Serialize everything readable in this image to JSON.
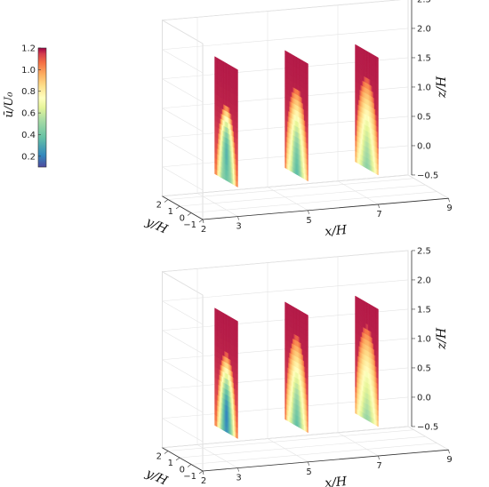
{
  "chart_data": [
    {
      "type": "heatmap",
      "title": "",
      "xlabel": "x/H",
      "ylabel": "y/H",
      "zlabel": "z/H",
      "x_ticks": [
        2,
        3,
        5,
        7,
        9
      ],
      "y_ticks": [
        -1,
        0,
        1,
        2
      ],
      "z_ticks": [
        -0.5,
        0.0,
        0.5,
        1.0,
        1.5,
        2.0,
        2.5
      ],
      "xlim": [
        2,
        9
      ],
      "ylim": [
        -1,
        2.5
      ],
      "zlim": [
        -0.5,
        2.5
      ],
      "grid": true,
      "planes_x": [
        3,
        5,
        7
      ],
      "slice_extent": {
        "y": [
          -1,
          1
        ],
        "z": [
          0,
          2
        ]
      },
      "colormap": "Spectral_r",
      "slices": [
        {
          "x": 3,
          "deficit_center_y": 0.0,
          "deficit_center_z": 0.9,
          "min_value": 0.15,
          "wake_halfwidth_y": 0.85,
          "wake_height_z": 1.3
        },
        {
          "x": 5,
          "deficit_center_y": 0.0,
          "deficit_center_z": 0.5,
          "min_value": 0.45,
          "wake_halfwidth_y": 0.95,
          "wake_height_z": 1.5
        },
        {
          "x": 7,
          "deficit_center_y": 0.0,
          "deficit_center_z": 0.5,
          "min_value": 0.6,
          "wake_halfwidth_y": 1.0,
          "wake_height_z": 1.55
        }
      ]
    },
    {
      "type": "heatmap",
      "title": "",
      "xlabel": "x/H",
      "ylabel": "y/H",
      "zlabel": "z/H",
      "x_ticks": [
        2,
        3,
        5,
        7,
        9
      ],
      "y_ticks": [
        -1,
        0,
        1,
        2
      ],
      "z_ticks": [
        -0.5,
        0.0,
        0.5,
        1.0,
        1.5,
        2.0,
        2.5
      ],
      "xlim": [
        2,
        9
      ],
      "ylim": [
        -1,
        2.5
      ],
      "zlim": [
        -0.5,
        2.5
      ],
      "grid": true,
      "planes_x": [
        3,
        5,
        7
      ],
      "slice_extent": {
        "y": [
          -1,
          1
        ],
        "z": [
          0,
          2
        ]
      },
      "colormap": "Spectral_r",
      "slices": [
        {
          "x": 3,
          "deficit_center_y": 0.0,
          "deficit_center_z": 0.6,
          "min_value": 0.2,
          "wake_halfwidth_y": 0.85,
          "wake_height_z": 1.35
        },
        {
          "x": 5,
          "deficit_center_y": 0.0,
          "deficit_center_z": 0.4,
          "min_value": 0.5,
          "wake_halfwidth_y": 0.95,
          "wake_height_z": 1.55
        },
        {
          "x": 7,
          "deficit_center_y": 0.0,
          "deficit_center_z": 0.4,
          "min_value": 0.65,
          "wake_halfwidth_y": 1.0,
          "wake_height_z": 1.6
        }
      ]
    }
  ],
  "colorbar": {
    "label": "ū/U₀",
    "ticks": [
      0.2,
      0.4,
      0.6,
      0.8,
      1.0,
      1.2
    ],
    "range": [
      0.1,
      1.2
    ]
  }
}
